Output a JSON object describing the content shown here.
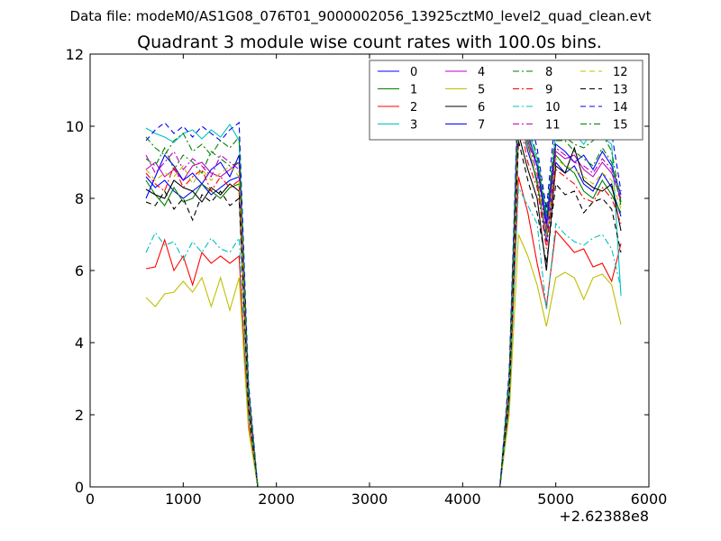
{
  "suptitle": "Data file: modeM0/AS1G08_076T01_9000002056_13925cztM0_level2_quad_clean.evt",
  "chart_data": {
    "type": "line",
    "title": "Quadrant 3 module wise count rates with 100.0s bins.",
    "xlabel": "",
    "ylabel": "",
    "xlim": [
      0,
      6000
    ],
    "ylim": [
      0,
      12
    ],
    "x_offset_label": "+2.62388e8",
    "xticks": [
      0,
      1000,
      2000,
      3000,
      4000,
      5000,
      6000
    ],
    "yticks": [
      0,
      2,
      4,
      6,
      8,
      10,
      12
    ],
    "x_ticklabels": [
      "0",
      "1000",
      "2000",
      "3000",
      "4000",
      "5000",
      "6000"
    ],
    "y_ticklabels": [
      "0",
      "2",
      "4",
      "6",
      "8",
      "10",
      "12"
    ],
    "legend_position": "top-right",
    "legend_columns": 4,
    "x": [
      600,
      700,
      800,
      900,
      1000,
      1100,
      1200,
      1300,
      1400,
      1500,
      1600,
      1700,
      1800,
      1900,
      2000,
      2100,
      2200,
      2300,
      2400,
      2500,
      2600,
      2700,
      2800,
      2900,
      3000,
      3100,
      3200,
      3300,
      3400,
      3500,
      3600,
      3700,
      3800,
      3900,
      4000,
      4100,
      4200,
      4300,
      4400,
      4500,
      4600,
      4700,
      4800,
      4900,
      5000,
      5100,
      5200,
      5300,
      5400,
      5500,
      5600,
      5700
    ],
    "series": [
      {
        "name": "0",
        "color": "#0000ff",
        "dash": "solid",
        "values": [
          8.6,
          8.3,
          8.5,
          8.2,
          8.0,
          8.2,
          8.4,
          8.1,
          8.3,
          8.5,
          8.6,
          2.5,
          0,
          0,
          0,
          0,
          0,
          0,
          0,
          0,
          0,
          0,
          0,
          0,
          0,
          0,
          0,
          0,
          0,
          0,
          0,
          0,
          0,
          0,
          0,
          0,
          0,
          0,
          0,
          2.8,
          10.4,
          9.3,
          8.5,
          6.8,
          9.0,
          8.7,
          8.9,
          8.4,
          8.2,
          8.7,
          8.3,
          7.5
        ]
      },
      {
        "name": "1",
        "color": "#008000",
        "dash": "solid",
        "values": [
          8.5,
          8.1,
          7.8,
          8.3,
          7.9,
          8.0,
          8.4,
          8.2,
          8.0,
          8.3,
          8.4,
          2.4,
          0,
          0,
          0,
          0,
          0,
          0,
          0,
          0,
          0,
          0,
          0,
          0,
          0,
          0,
          0,
          0,
          0,
          0,
          0,
          0,
          0,
          0,
          0,
          0,
          0,
          0,
          0,
          2.7,
          10.2,
          9.5,
          8.4,
          7.0,
          9.2,
          8.9,
          8.7,
          8.2,
          8.0,
          8.5,
          8.1,
          7.6
        ]
      },
      {
        "name": "2",
        "color": "#ff0000",
        "dash": "solid",
        "values": [
          6.05,
          6.1,
          6.85,
          6.0,
          6.4,
          5.6,
          6.5,
          6.2,
          6.4,
          6.2,
          6.4,
          1.8,
          0,
          0,
          0,
          0,
          0,
          0,
          0,
          0,
          0,
          0,
          0,
          0,
          0,
          0,
          0,
          0,
          0,
          0,
          0,
          0,
          0,
          0,
          0,
          0,
          0,
          0,
          0,
          2.2,
          8.6,
          7.6,
          6.2,
          5.0,
          7.1,
          6.8,
          6.5,
          6.6,
          6.1,
          6.2,
          5.7,
          6.75
        ]
      },
      {
        "name": "3",
        "color": "#00bfbf",
        "dash": "solid",
        "values": [
          9.95,
          9.8,
          9.7,
          9.55,
          9.8,
          9.9,
          9.65,
          9.9,
          9.7,
          10.05,
          9.6,
          2.8,
          0,
          0,
          0,
          0,
          0,
          0,
          0,
          0,
          0,
          0,
          0,
          0,
          0,
          0,
          0,
          0,
          0,
          0,
          0,
          0,
          0,
          0,
          0,
          0,
          0,
          0,
          0,
          3.1,
          11.1,
          9.9,
          9.1,
          7.4,
          9.8,
          10.0,
          9.8,
          9.5,
          9.9,
          9.7,
          9.5,
          5.3
        ]
      },
      {
        "name": "4",
        "color": "#bf00bf",
        "dash": "solid",
        "values": [
          8.8,
          9.0,
          8.6,
          8.8,
          8.5,
          8.9,
          9.0,
          8.7,
          8.6,
          8.8,
          9.0,
          2.6,
          0,
          0,
          0,
          0,
          0,
          0,
          0,
          0,
          0,
          0,
          0,
          0,
          0,
          0,
          0,
          0,
          0,
          0,
          0,
          0,
          0,
          0,
          0,
          0,
          0,
          0,
          0,
          2.9,
          10.6,
          9.6,
          8.9,
          7.2,
          9.3,
          9.1,
          9.2,
          8.8,
          8.6,
          9.0,
          8.7,
          8.0
        ]
      },
      {
        "name": "5",
        "color": "#bfbf00",
        "dash": "solid",
        "values": [
          5.25,
          5.0,
          5.35,
          5.4,
          5.7,
          5.4,
          5.8,
          5.0,
          5.8,
          4.9,
          5.8,
          1.6,
          0,
          0,
          0,
          0,
          0,
          0,
          0,
          0,
          0,
          0,
          0,
          0,
          0,
          0,
          0,
          0,
          0,
          0,
          0,
          0,
          0,
          0,
          0,
          0,
          0,
          0,
          0,
          2.0,
          7.0,
          6.4,
          5.6,
          4.45,
          5.8,
          5.95,
          5.8,
          5.2,
          5.8,
          5.9,
          5.6,
          4.5
        ]
      },
      {
        "name": "6",
        "color": "#000000",
        "dash": "solid",
        "values": [
          8.25,
          8.1,
          8.0,
          8.5,
          8.3,
          8.2,
          7.9,
          8.3,
          8.1,
          8.4,
          8.2,
          2.3,
          0,
          0,
          0,
          0,
          0,
          0,
          0,
          0,
          0,
          0,
          0,
          0,
          0,
          0,
          0,
          0,
          0,
          0,
          0,
          0,
          0,
          0,
          0,
          0,
          0,
          0,
          0,
          2.6,
          9.8,
          8.8,
          8.0,
          6.0,
          8.9,
          8.7,
          9.4,
          8.5,
          8.3,
          8.2,
          8.4,
          7.1
        ]
      },
      {
        "name": "7",
        "color": "#0000ff",
        "dash": "solid",
        "values": [
          8.0,
          8.6,
          9.2,
          8.9,
          8.5,
          8.7,
          8.4,
          8.8,
          9.0,
          8.6,
          9.2,
          2.6,
          0,
          0,
          0,
          0,
          0,
          0,
          0,
          0,
          0,
          0,
          0,
          0,
          0,
          0,
          0,
          0,
          0,
          0,
          0,
          0,
          0,
          0,
          0,
          0,
          0,
          0,
          0,
          2.9,
          10.9,
          9.8,
          8.9,
          7.3,
          9.5,
          9.3,
          9.0,
          9.2,
          8.8,
          9.3,
          8.9,
          8.1
        ]
      },
      {
        "name": "8",
        "color": "#008000",
        "dash": "dashdot",
        "values": [
          9.1,
          8.9,
          9.4,
          8.8,
          9.2,
          9.0,
          8.7,
          9.3,
          9.1,
          8.9,
          9.0,
          2.6,
          0,
          0,
          0,
          0,
          0,
          0,
          0,
          0,
          0,
          0,
          0,
          0,
          0,
          0,
          0,
          0,
          0,
          0,
          0,
          0,
          0,
          0,
          0,
          0,
          0,
          0,
          0,
          3.0,
          10.7,
          9.7,
          9.0,
          7.6,
          9.6,
          9.6,
          9.3,
          9.1,
          8.9,
          9.4,
          9.0,
          7.8
        ]
      },
      {
        "name": "9",
        "color": "#ff0000",
        "dash": "dashdot",
        "values": [
          8.7,
          8.4,
          8.2,
          8.9,
          8.3,
          8.6,
          8.8,
          8.2,
          8.6,
          8.3,
          8.5,
          2.4,
          0,
          0,
          0,
          0,
          0,
          0,
          0,
          0,
          0,
          0,
          0,
          0,
          0,
          0,
          0,
          0,
          0,
          0,
          0,
          0,
          0,
          0,
          0,
          0,
          0,
          0,
          0,
          2.8,
          10.3,
          9.0,
          8.3,
          6.6,
          8.8,
          8.6,
          8.4,
          8.0,
          7.9,
          8.3,
          8.0,
          7.3
        ]
      },
      {
        "name": "10",
        "color": "#00bfbf",
        "dash": "dashdot",
        "values": [
          6.5,
          7.05,
          6.7,
          6.8,
          6.3,
          6.8,
          6.5,
          6.9,
          6.6,
          6.5,
          6.9,
          2.0,
          0,
          0,
          0,
          0,
          0,
          0,
          0,
          0,
          0,
          0,
          0,
          0,
          0,
          0,
          0,
          0,
          0,
          0,
          0,
          0,
          0,
          0,
          0,
          0,
          0,
          0,
          0,
          2.3,
          8.3,
          7.8,
          7.3,
          4.9,
          7.3,
          7.0,
          6.8,
          6.7,
          6.9,
          7.0,
          6.6,
          5.5
        ]
      },
      {
        "name": "11",
        "color": "#bf00bf",
        "dash": "dashdot",
        "values": [
          9.2,
          8.7,
          9.0,
          9.3,
          8.8,
          9.1,
          8.9,
          8.6,
          9.2,
          9.0,
          8.8,
          2.5,
          0,
          0,
          0,
          0,
          0,
          0,
          0,
          0,
          0,
          0,
          0,
          0,
          0,
          0,
          0,
          0,
          0,
          0,
          0,
          0,
          0,
          0,
          0,
          0,
          0,
          0,
          0,
          2.9,
          10.5,
          9.6,
          8.7,
          7.1,
          9.4,
          9.2,
          9.0,
          8.9,
          8.7,
          9.1,
          8.8,
          7.9
        ]
      },
      {
        "name": "12",
        "color": "#bfbf00",
        "dash": "dashed",
        "values": [
          8.8,
          8.5,
          8.7,
          8.6,
          8.9,
          8.4,
          8.8,
          8.5,
          8.7,
          8.9,
          8.6,
          2.5,
          0,
          0,
          0,
          0,
          0,
          0,
          0,
          0,
          0,
          0,
          0,
          0,
          0,
          0,
          0,
          0,
          0,
          0,
          0,
          0,
          0,
          0,
          0,
          0,
          0,
          0,
          0,
          2.8,
          10.1,
          9.4,
          8.6,
          6.9,
          9.1,
          8.9,
          8.8,
          8.6,
          8.4,
          8.7,
          8.5,
          7.7
        ]
      },
      {
        "name": "13",
        "color": "#000000",
        "dash": "dashed",
        "values": [
          7.9,
          7.8,
          8.2,
          7.7,
          8.0,
          7.4,
          8.1,
          7.9,
          8.2,
          7.8,
          8.0,
          2.2,
          0,
          0,
          0,
          0,
          0,
          0,
          0,
          0,
          0,
          0,
          0,
          0,
          0,
          0,
          0,
          0,
          0,
          0,
          0,
          0,
          0,
          0,
          0,
          0,
          0,
          0,
          0,
          2.5,
          9.6,
          8.5,
          7.6,
          6.2,
          8.4,
          8.1,
          8.2,
          7.6,
          7.9,
          8.0,
          7.7,
          6.5
        ]
      },
      {
        "name": "14",
        "color": "#0000ff",
        "dash": "dashed",
        "values": [
          9.6,
          9.9,
          10.1,
          9.8,
          10.0,
          9.7,
          10.0,
          9.8,
          9.6,
          9.9,
          10.1,
          2.9,
          0,
          0,
          0,
          0,
          0,
          0,
          0,
          0,
          0,
          0,
          0,
          0,
          0,
          0,
          0,
          0,
          0,
          0,
          0,
          0,
          0,
          0,
          0,
          0,
          0,
          0,
          0,
          3.2,
          11.3,
          10.4,
          9.4,
          7.7,
          10.4,
          10.1,
          10.3,
          9.9,
          9.7,
          10.0,
          9.8,
          8.2
        ]
      },
      {
        "name": "15",
        "color": "#008000",
        "dash": "dashdot",
        "values": [
          9.7,
          9.4,
          9.2,
          9.6,
          9.8,
          9.3,
          9.5,
          9.2,
          9.6,
          9.4,
          9.7,
          2.7,
          0,
          0,
          0,
          0,
          0,
          0,
          0,
          0,
          0,
          0,
          0,
          0,
          0,
          0,
          0,
          0,
          0,
          0,
          0,
          0,
          0,
          0,
          0,
          0,
          0,
          0,
          0,
          3.0,
          10.8,
          10.0,
          9.2,
          7.5,
          9.9,
          9.7,
          9.5,
          9.4,
          9.6,
          9.8,
          9.3,
          7.9
        ]
      }
    ]
  }
}
